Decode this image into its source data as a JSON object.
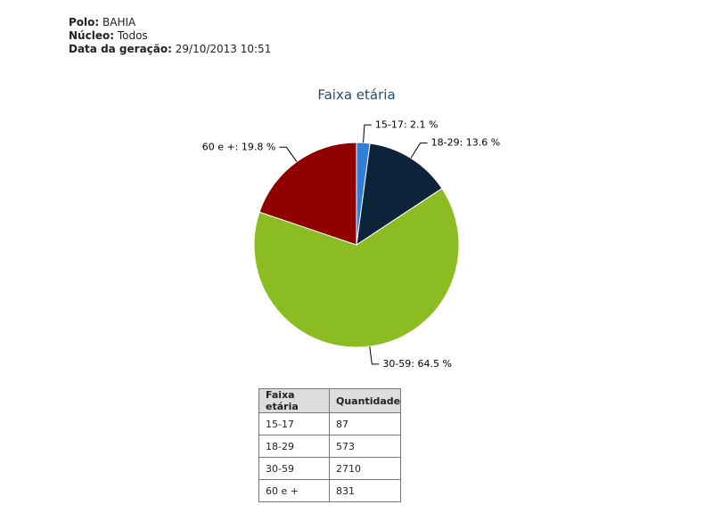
{
  "header": {
    "fields": [
      {
        "label": "Polo:",
        "value": "BAHIA"
      },
      {
        "label": "Núcleo:",
        "value": "Todos"
      },
      {
        "label": "Data da geração:",
        "value": "29/10/2013 10:51"
      }
    ]
  },
  "chart_data": {
    "type": "pie",
    "title": "Faixa etária",
    "categories": [
      "15-17",
      "18-29",
      "30-59",
      "60 e +"
    ],
    "values": [
      2.1,
      13.6,
      64.5,
      19.8
    ],
    "value_labels": [
      "15-17: 2.1 %",
      "18-29: 13.6 %",
      "30-59: 64.5 %",
      "60 e +: 19.8 %"
    ],
    "colors": [
      "#2f7ed8",
      "#0d233a",
      "#8bbc21",
      "#910000"
    ]
  },
  "table": {
    "columns": [
      "Faixa etária",
      "Quantidade"
    ],
    "rows": [
      [
        "15-17",
        87
      ],
      [
        "18-29",
        573
      ],
      [
        "30-59",
        2710
      ],
      [
        "60 e +",
        831
      ]
    ]
  }
}
